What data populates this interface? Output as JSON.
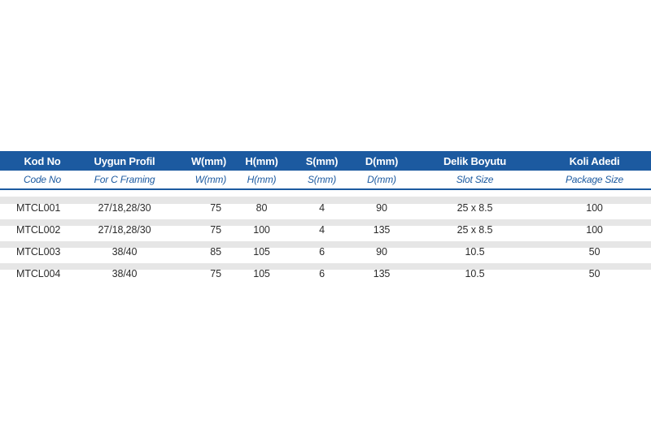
{
  "table": {
    "headers": [
      "Kod No",
      "Uygun Profil",
      "W(mm)",
      "H(mm)",
      "S(mm)",
      "D(mm)",
      "Delik Boyutu",
      "Koli Adedi"
    ],
    "subheaders": [
      "Code No",
      "For C Framing",
      "W(mm)",
      "H(mm)",
      "S(mm)",
      "D(mm)",
      "Slot Size",
      "Package Size"
    ],
    "rows": [
      [
        "MTCL001",
        "27/18,28/30",
        "75",
        "80",
        "4",
        "90",
        "25 x 8.5",
        "100"
      ],
      [
        "MTCL002",
        "27/18,28/30",
        "75",
        "100",
        "4",
        "135",
        "25 x 8.5",
        "100"
      ],
      [
        "MTCL003",
        "38/40",
        "85",
        "105",
        "6",
        "90",
        "10.5",
        "50"
      ],
      [
        "MTCL004",
        "38/40",
        "75",
        "105",
        "6",
        "135",
        "10.5",
        "50"
      ]
    ]
  },
  "colors": {
    "header_background": "#1c5aa0",
    "header_text": "#ffffff",
    "subheader_text": "#1c5aa0",
    "row_stripe": "#e6e6e6",
    "body_text": "#2b2b2b"
  }
}
